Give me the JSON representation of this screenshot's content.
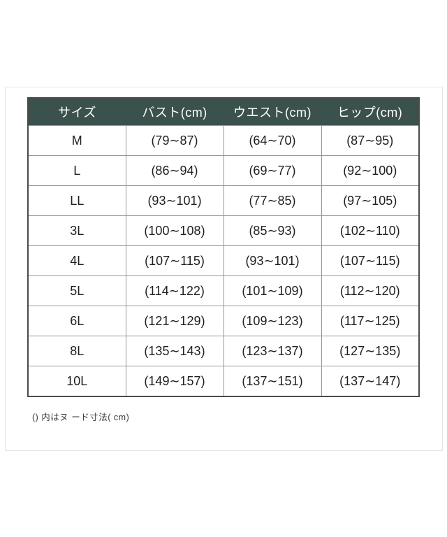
{
  "chart_data": {
    "type": "table",
    "columns": [
      "サイズ",
      "バスト(cm)",
      "ウエスト(cm)",
      "ヒップ(cm)"
    ],
    "rows": [
      [
        "M",
        "(79∼87)",
        "(64∼70)",
        "(87∼95)"
      ],
      [
        "L",
        "(86∼94)",
        "(69∼77)",
        "(92∼100)"
      ],
      [
        "LL",
        "(93∼101)",
        "(77∼85)",
        "(97∼105)"
      ],
      [
        "3L",
        "(100∼108)",
        "(85∼93)",
        "(102∼110)"
      ],
      [
        "4L",
        "(107∼115)",
        "(93∼101)",
        "(107∼115)"
      ],
      [
        "5L",
        "(114∼122)",
        "(101∼109)",
        "(112∼120)"
      ],
      [
        "6L",
        "(121∼129)",
        "(109∼123)",
        "(117∼125)"
      ],
      [
        "8L",
        "(135∼143)",
        "(123∼137)",
        "(127∼135)"
      ],
      [
        "10L",
        "(149∼157)",
        "(137∼151)",
        "(137∼147)"
      ]
    ],
    "footnote": "() 内はヌ ード寸法( cm)"
  },
  "colors": {
    "header_bg": "#3b514d",
    "header_text": "#ffffff",
    "body_text": "#1f1f1f",
    "outer_border": "#4a4a4a",
    "inner_border": "#969696",
    "frame_border": "#e3e3e3",
    "background": "#ffffff"
  }
}
